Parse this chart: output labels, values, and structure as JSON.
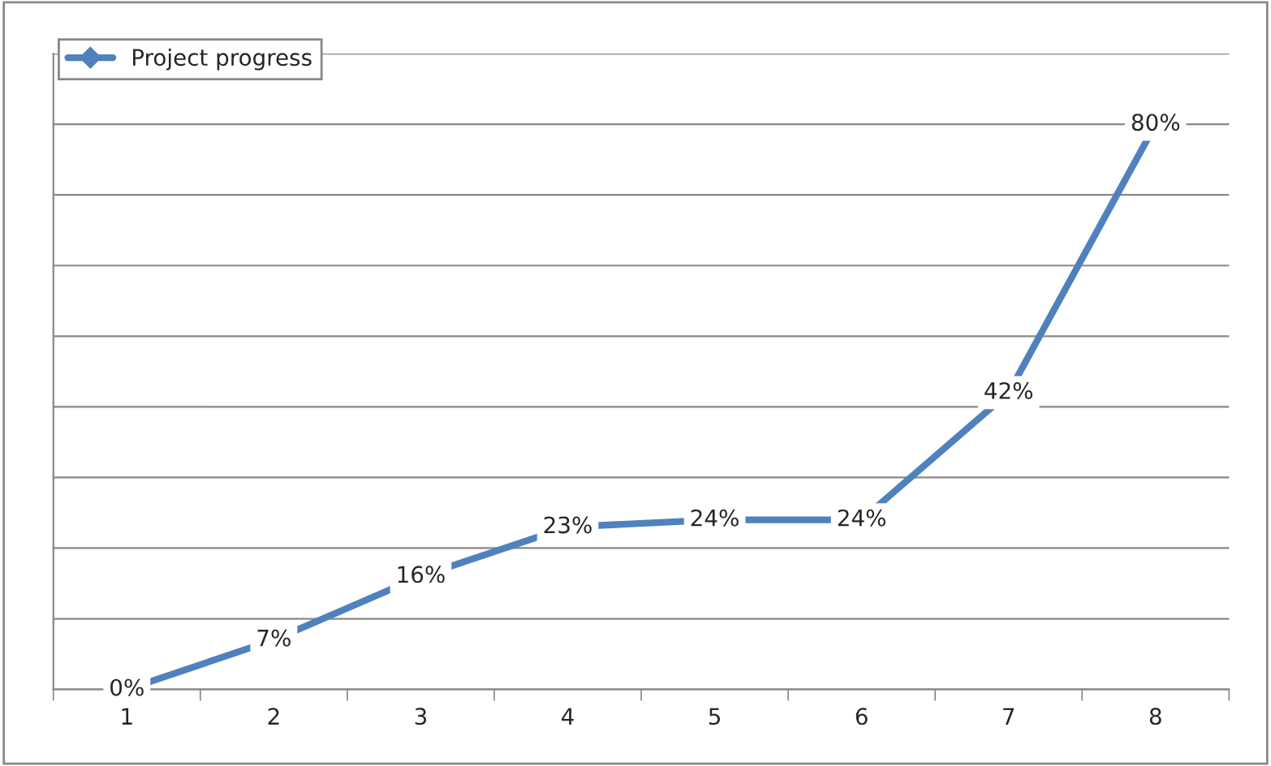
{
  "chart_data": {
    "type": "line",
    "categories": [
      "1",
      "2",
      "3",
      "4",
      "5",
      "6",
      "7",
      "8"
    ],
    "series": [
      {
        "name": "Project progress",
        "color": "#4f81bd",
        "values": [
          0,
          7,
          16,
          23,
          24,
          24,
          42,
          80
        ],
        "value_labels": [
          "0%",
          "7%",
          "16%",
          "23%",
          "24%",
          "24%",
          "42%",
          "80%"
        ]
      }
    ],
    "ylim": [
      0,
      90
    ],
    "yticks": [
      {
        "value": 0,
        "label": null
      },
      {
        "value": 10,
        "label": null
      },
      {
        "value": 20,
        "label": null
      },
      {
        "value": 30,
        "label": null
      },
      {
        "value": 40,
        "label": null
      },
      {
        "value": 50,
        "label": null
      },
      {
        "value": 60,
        "label": null
      },
      {
        "value": 70,
        "label": null
      },
      {
        "value": 80,
        "label": null
      },
      {
        "value": 90,
        "label": null
      }
    ],
    "grid": "y",
    "legend": "top left",
    "marker": "diamond",
    "line_style": "solid",
    "tick_labels": "x"
  }
}
